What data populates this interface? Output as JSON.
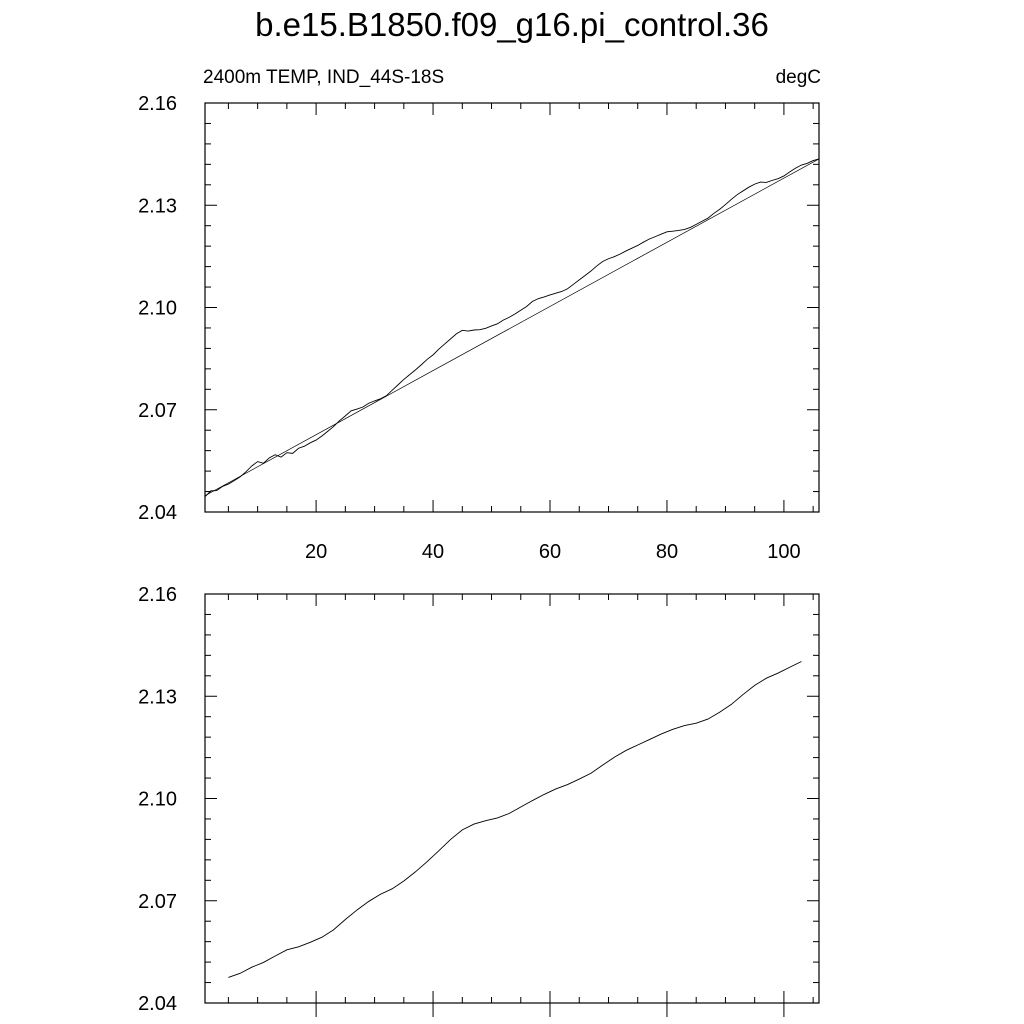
{
  "title": "b.e15.B1850.f09_g16.pi_control.36",
  "chart_data": [
    {
      "type": "line",
      "left_label": "2400m TEMP, IND_44S-18S",
      "right_label": "degC",
      "xlim": [
        1,
        106
      ],
      "ylim": [
        2.04,
        2.16
      ],
      "xticks": [
        20,
        40,
        60,
        80,
        100
      ],
      "xtick_labels": [
        "20",
        "40",
        "60",
        "80",
        "100"
      ],
      "yticks": [
        2.04,
        2.07,
        2.1,
        2.13,
        2.16
      ],
      "ytick_labels": [
        "2.04",
        "2.07",
        "2.10",
        "2.13",
        "2.16"
      ],
      "series": [
        {
          "x": [
            1,
            2,
            3,
            4,
            5,
            6,
            7,
            8,
            9,
            10,
            11,
            12,
            13,
            14,
            15,
            16,
            17,
            18,
            19,
            20,
            21,
            22,
            23,
            24,
            25,
            26,
            27,
            28,
            29,
            30,
            31,
            32,
            33,
            34,
            35,
            36,
            37,
            38,
            39,
            40,
            41,
            42,
            43,
            44,
            45,
            46,
            47,
            48,
            49,
            50,
            51,
            52,
            53,
            54,
            55,
            56,
            57,
            58,
            59,
            60,
            61,
            62,
            63,
            64,
            65,
            66,
            67,
            68,
            69,
            70,
            71,
            72,
            73,
            74,
            75,
            76,
            77,
            78,
            79,
            80,
            81,
            82,
            83,
            84,
            85,
            86,
            87,
            88,
            89,
            90,
            91,
            92,
            93,
            94,
            95,
            96,
            97,
            98,
            99,
            100,
            101,
            102,
            103,
            104,
            105,
            106
          ],
          "values": [
            2.0445,
            2.0462,
            2.0463,
            2.0475,
            2.0482,
            2.0492,
            2.0503,
            2.0518,
            2.0535,
            2.0548,
            2.0543,
            2.0559,
            2.0568,
            2.0561,
            2.0574,
            2.0572,
            2.0587,
            2.0593,
            2.0603,
            2.0611,
            2.0623,
            2.0637,
            2.0651,
            2.0668,
            2.0682,
            2.0697,
            2.0702,
            2.0708,
            2.0719,
            2.0726,
            2.0732,
            2.0741,
            2.0757,
            2.0773,
            2.0789,
            2.0803,
            2.0817,
            2.0832,
            2.0848,
            2.0861,
            2.0878,
            2.0893,
            2.0908,
            2.0923,
            2.0933,
            2.0931,
            2.0934,
            2.0935,
            2.0939,
            2.0946,
            2.0952,
            2.0963,
            2.0971,
            2.0981,
            2.0992,
            2.1003,
            2.1018,
            2.1026,
            2.1031,
            2.1037,
            2.1042,
            2.1047,
            2.1055,
            2.1068,
            2.1081,
            2.1094,
            2.1107,
            2.1122,
            2.1135,
            2.1143,
            2.1149,
            2.1157,
            2.1166,
            2.1174,
            2.1182,
            2.1192,
            2.1201,
            2.1208,
            2.1215,
            2.1222,
            2.1224,
            2.1226,
            2.1229,
            2.1235,
            2.1244,
            2.1253,
            2.1262,
            2.1276,
            2.1288,
            2.1302,
            2.1317,
            2.1331,
            2.1342,
            2.1353,
            2.1362,
            2.1368,
            2.1367,
            2.1373,
            2.1378,
            2.1386,
            2.1398,
            2.1409,
            2.1418,
            2.1423,
            2.1431,
            2.1436
          ]
        },
        {
          "x": [
            1,
            106
          ],
          "values": [
            2.0448,
            2.1436
          ]
        }
      ]
    },
    {
      "type": "line",
      "xlim": [
        1,
        106
      ],
      "ylim": [
        2.04,
        2.16
      ],
      "xticks": [
        20,
        40,
        60,
        80,
        100
      ],
      "yticks": [
        2.04,
        2.07,
        2.1,
        2.13,
        2.16
      ],
      "ytick_labels": [
        "2.04",
        "2.07",
        "2.10",
        "2.13",
        "2.16"
      ],
      "series": [
        {
          "x": [
            5,
            7,
            9,
            11,
            13,
            15,
            17,
            19,
            21,
            23,
            25,
            27,
            29,
            31,
            33,
            35,
            37,
            39,
            41,
            43,
            45,
            47,
            49,
            51,
            53,
            55,
            57,
            59,
            61,
            63,
            65,
            67,
            69,
            71,
            73,
            75,
            77,
            79,
            81,
            83,
            85,
            87,
            89,
            91,
            93,
            95,
            97,
            99,
            101,
            103
          ],
          "values": [
            2.0475,
            2.0487,
            2.0505,
            2.0519,
            2.0538,
            2.0556,
            2.0565,
            2.0578,
            2.0593,
            2.0615,
            2.0645,
            2.0673,
            2.0698,
            2.0719,
            2.0735,
            2.0758,
            2.0785,
            2.0815,
            2.0847,
            2.088,
            2.0908,
            2.0925,
            2.0935,
            2.0943,
            2.0956,
            2.0975,
            2.0994,
            2.1012,
            2.1028,
            2.1041,
            2.1057,
            2.1074,
            2.1098,
            2.1121,
            2.1141,
            2.1157,
            2.1173,
            2.1189,
            2.1203,
            2.1214,
            2.1221,
            2.1233,
            2.1253,
            2.1276,
            2.1305,
            2.1332,
            2.1353,
            2.1368,
            2.1385,
            2.1402
          ]
        }
      ]
    }
  ]
}
